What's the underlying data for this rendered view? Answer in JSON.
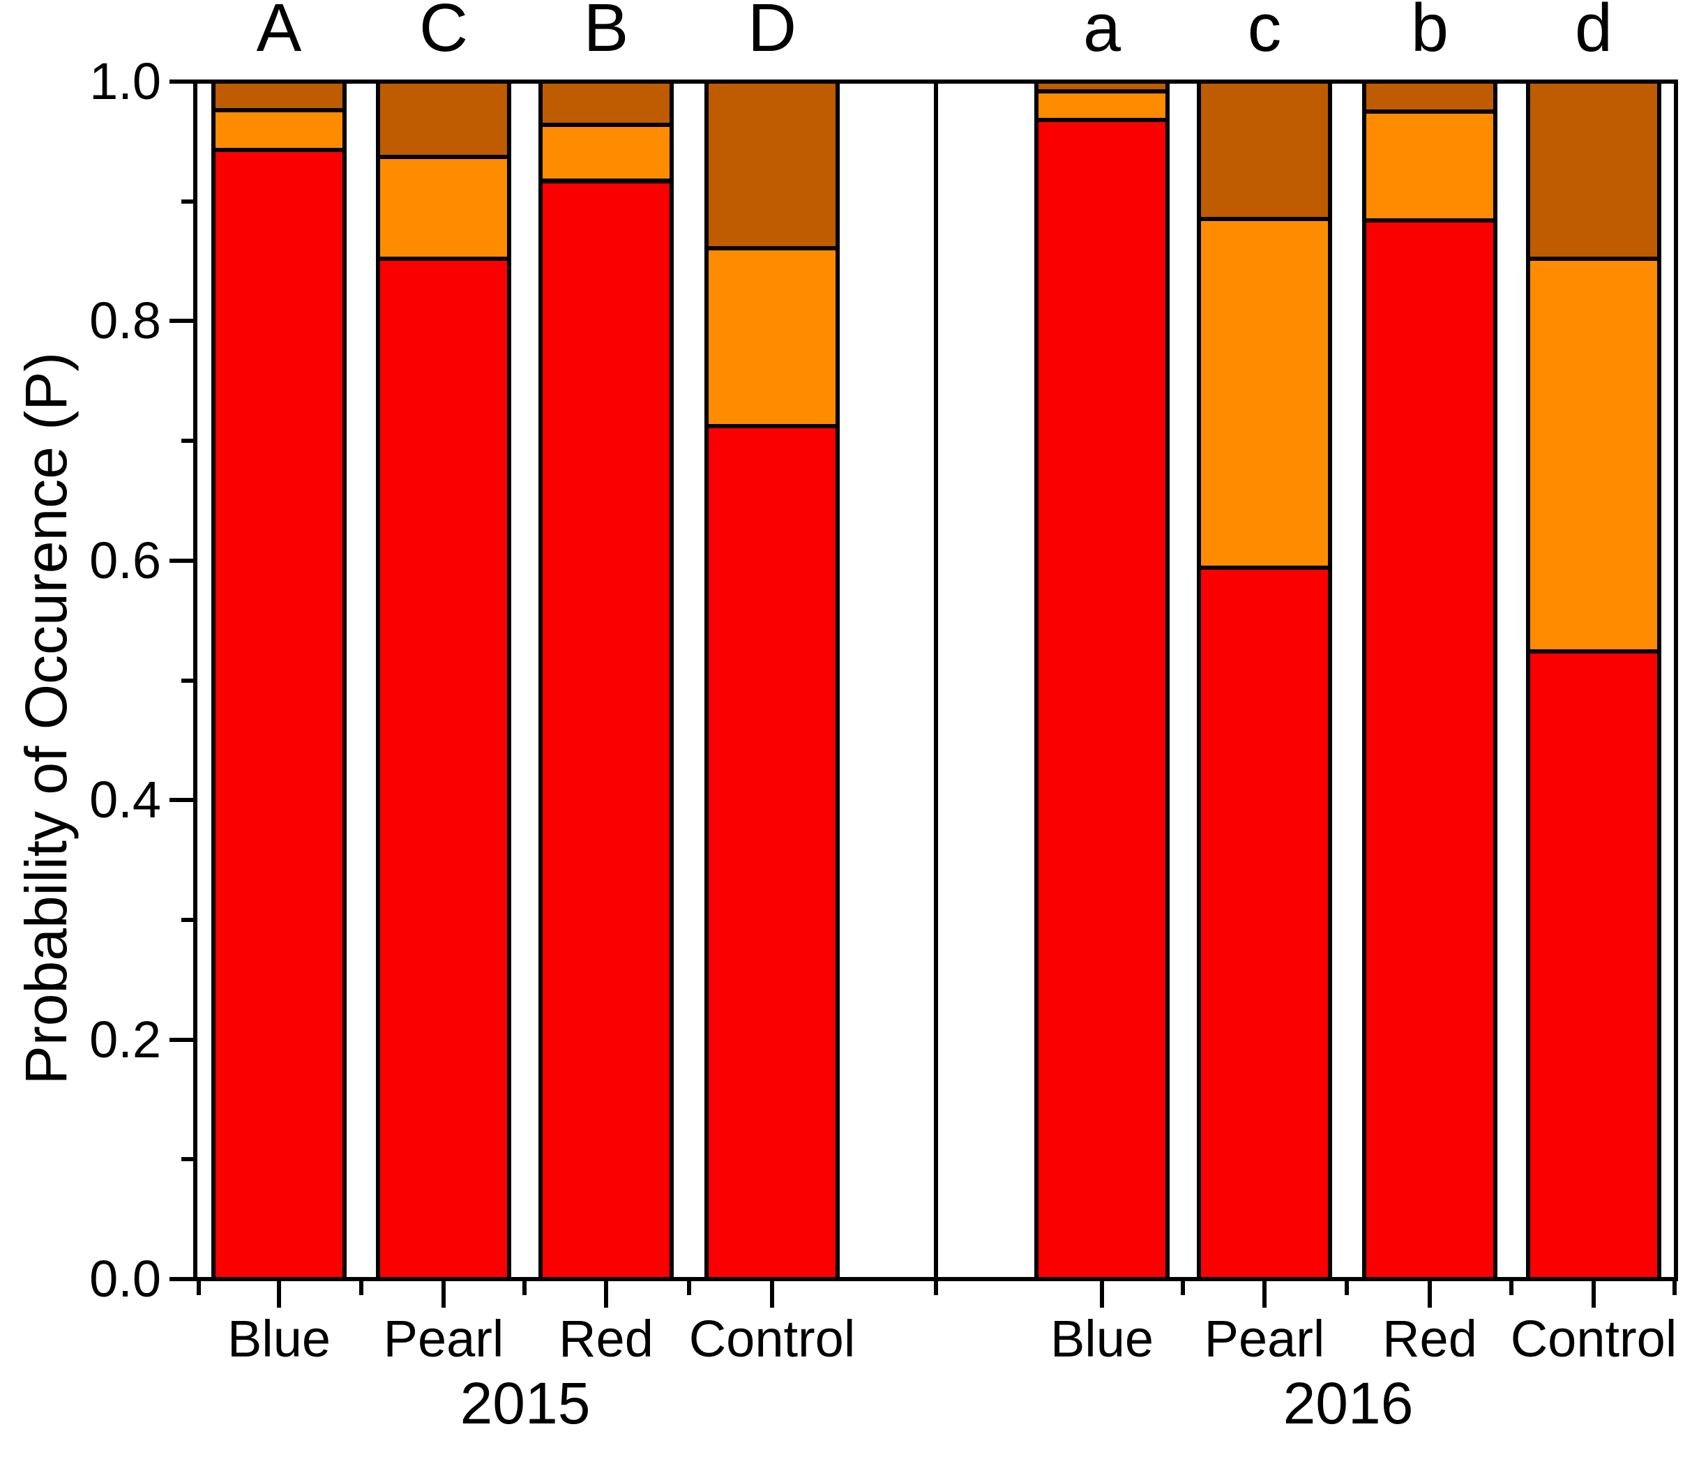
{
  "y_axis": {
    "tick_labels": [
      "1.0",
      "0.8",
      "0.6",
      "0.4",
      "0.2",
      "0.0"
    ],
    "major_ticks": [
      1.0,
      0.8,
      0.6,
      0.4,
      0.2,
      0.0
    ],
    "minor_ticks": [
      0.9,
      0.7,
      0.5,
      0.3,
      0.1
    ],
    "range": [
      0.0,
      1.0
    ]
  },
  "chart_data": {
    "type": "bar",
    "stacked": true,
    "title": "",
    "xlabel": "",
    "ylabel": "Probability of Occurence (P)",
    "ylim": [
      0.0,
      1.0
    ],
    "grid": false,
    "legend": "none",
    "groups": [
      "2015",
      "2016"
    ],
    "categories": [
      "Blue",
      "Pearl",
      "Red",
      "Control"
    ],
    "significance_letters": [
      "A",
      "C",
      "B",
      "D",
      "a",
      "c",
      "b",
      "d"
    ],
    "bar_order": [
      "2015-Blue",
      "2015-Pearl",
      "2015-Red",
      "2015-Control",
      "2016-Blue",
      "2016-Pearl",
      "2016-Red",
      "2016-Control"
    ],
    "series": [
      {
        "name": "red-segment",
        "color": "#FA0000",
        "values": [
          0.943,
          0.852,
          0.917,
          0.712,
          0.968,
          0.594,
          0.884,
          0.524
        ]
      },
      {
        "name": "orange-segment",
        "color": "#FF8C00",
        "values": [
          0.033,
          0.085,
          0.047,
          0.149,
          0.024,
          0.291,
          0.091,
          0.328
        ]
      },
      {
        "name": "brown-segment",
        "color": "#BF5B00",
        "values": [
          0.024,
          0.063,
          0.036,
          0.139,
          0.008,
          0.115,
          0.025,
          0.148
        ]
      }
    ],
    "cumulative_tops": {
      "red": [
        0.943,
        0.852,
        0.917,
        0.712,
        0.968,
        0.594,
        0.884,
        0.524
      ],
      "orange": [
        0.976,
        0.937,
        0.964,
        0.861,
        0.992,
        0.885,
        0.975,
        0.852
      ],
      "brown": [
        1.0,
        1.0,
        1.0,
        1.0,
        1.0,
        1.0,
        1.0,
        1.0
      ]
    },
    "colors": {
      "red": "#FA0000",
      "orange": "#FF8C00",
      "brown": "#BF5B00",
      "outline": "#000000"
    }
  }
}
